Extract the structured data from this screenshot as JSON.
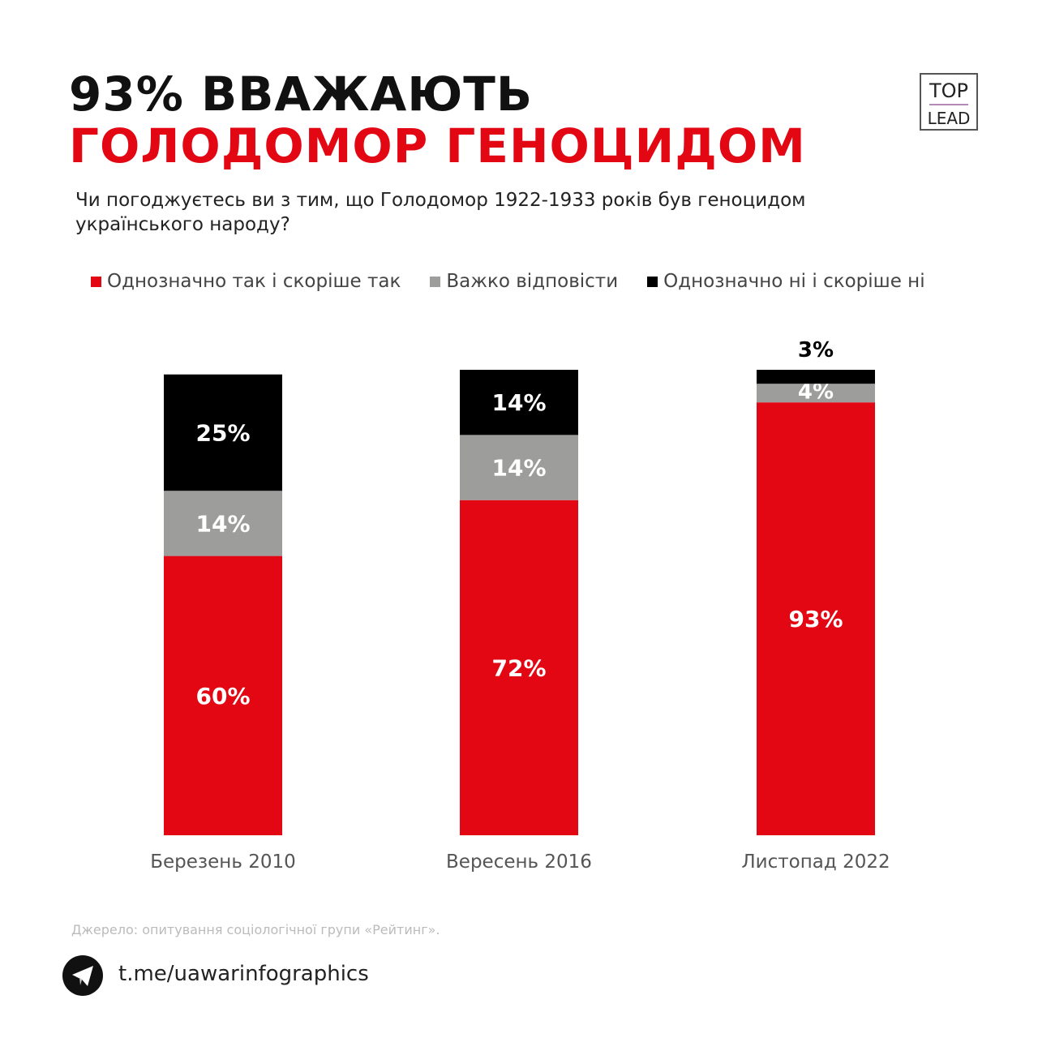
{
  "title_line1": "93% ВВАЖАЮТЬ",
  "title_line2": "ГОЛОДОМОР ГЕНОЦИДОМ",
  "question": "Чи погоджуєтесь ви з тим, що Голодомор 1922-1933 років був геноцидом українського народу?",
  "logo": {
    "top": "TOP",
    "bottom": "LEAD"
  },
  "source": "Джерело: опитування соціологічної групи «Рейтинг».",
  "link": "t.me/uawarinfographics",
  "chart_data": {
    "type": "bar",
    "stacked": true,
    "title": "93% ВВАЖАЮТЬ ГОЛОДОМОР ГЕНОЦИДОМ",
    "categories": [
      "Березень 2010",
      "Вересень 2016",
      "Листопад 2022"
    ],
    "series": [
      {
        "name": "Однозначно так і скоріше так",
        "color": "#e30613",
        "values": [
          60,
          72,
          93
        ]
      },
      {
        "name": "Важко відповісти",
        "color": "#9d9d9c",
        "values": [
          14,
          14,
          4
        ]
      },
      {
        "name": "Однозначно ні і скоріше ні",
        "color": "#000000",
        "values": [
          25,
          14,
          3
        ]
      }
    ],
    "ylim": [
      0,
      100
    ],
    "legend": "top",
    "grid": false
  }
}
